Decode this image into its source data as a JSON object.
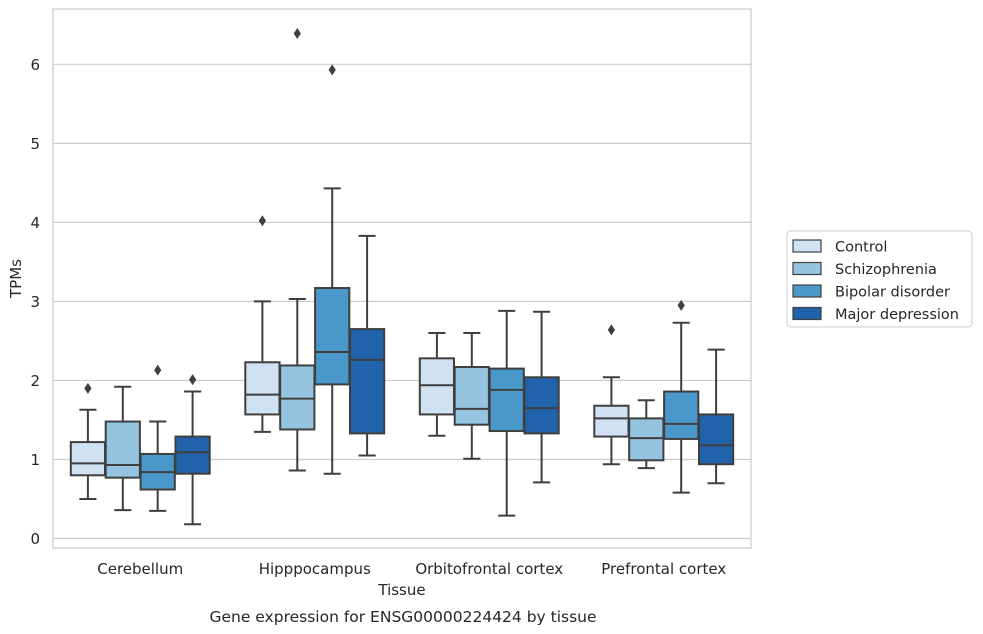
{
  "caption": "Gene expression for ENSG00000224424 by tissue",
  "chart_data": {
    "type": "box",
    "xlabel": "Tissue",
    "ylabel": "TPMs",
    "ylim": [
      -0.12,
      6.7
    ],
    "yticks": [
      0,
      1,
      2,
      3,
      4,
      5,
      6
    ],
    "grid": "horizontal",
    "legend_position": "right",
    "categories": [
      "Cerebellum",
      "Hipppocampus",
      "Orbitofrontal cortex",
      "Prefrontal cortex"
    ],
    "series": [
      {
        "name": "Control",
        "color": "#d0e1f2",
        "boxes": [
          {
            "whislo": 0.5,
            "q1": 0.8,
            "med": 0.95,
            "q3": 1.22,
            "whishi": 1.63,
            "fliers": [
              1.9
            ]
          },
          {
            "whislo": 1.35,
            "q1": 1.57,
            "med": 1.82,
            "q3": 2.23,
            "whishi": 3.0,
            "fliers": [
              4.02
            ]
          },
          {
            "whislo": 1.3,
            "q1": 1.57,
            "med": 1.94,
            "q3": 2.28,
            "whishi": 2.6,
            "fliers": []
          },
          {
            "whislo": 0.94,
            "q1": 1.29,
            "med": 1.52,
            "q3": 1.68,
            "whishi": 2.04,
            "fliers": [
              2.64
            ]
          }
        ]
      },
      {
        "name": "Schizophrenia",
        "color": "#94c4df",
        "boxes": [
          {
            "whislo": 0.36,
            "q1": 0.77,
            "med": 0.93,
            "q3": 1.48,
            "whishi": 1.92,
            "fliers": []
          },
          {
            "whislo": 0.86,
            "q1": 1.38,
            "med": 1.77,
            "q3": 2.19,
            "whishi": 3.03,
            "fliers": [
              6.39
            ]
          },
          {
            "whislo": 1.01,
            "q1": 1.44,
            "med": 1.64,
            "q3": 2.17,
            "whishi": 2.6,
            "fliers": []
          },
          {
            "whislo": 0.89,
            "q1": 0.99,
            "med": 1.27,
            "q3": 1.52,
            "whishi": 1.75,
            "fliers": []
          }
        ]
      },
      {
        "name": "Bipolar disorder",
        "color": "#4a98c9",
        "boxes": [
          {
            "whislo": 0.35,
            "q1": 0.62,
            "med": 0.84,
            "q3": 1.07,
            "whishi": 1.48,
            "fliers": [
              2.13
            ]
          },
          {
            "whislo": 0.82,
            "q1": 1.95,
            "med": 2.36,
            "q3": 3.17,
            "whishi": 4.43,
            "fliers": [
              5.93
            ]
          },
          {
            "whislo": 0.29,
            "q1": 1.36,
            "med": 1.88,
            "q3": 2.15,
            "whishi": 2.88,
            "fliers": []
          },
          {
            "whislo": 0.58,
            "q1": 1.26,
            "med": 1.45,
            "q3": 1.86,
            "whishi": 2.73,
            "fliers": [
              2.95
            ]
          }
        ]
      },
      {
        "name": "Major depression",
        "color": "#2163aa",
        "boxes": [
          {
            "whislo": 0.18,
            "q1": 0.82,
            "med": 1.09,
            "q3": 1.29,
            "whishi": 1.86,
            "fliers": [
              2.01
            ]
          },
          {
            "whislo": 1.05,
            "q1": 1.33,
            "med": 2.26,
            "q3": 2.65,
            "whishi": 3.83,
            "fliers": []
          },
          {
            "whislo": 0.71,
            "q1": 1.33,
            "med": 1.65,
            "q3": 2.04,
            "whishi": 2.87,
            "fliers": []
          },
          {
            "whislo": 0.7,
            "q1": 0.94,
            "med": 1.18,
            "q3": 1.57,
            "whishi": 2.39,
            "fliers": []
          }
        ]
      }
    ]
  }
}
